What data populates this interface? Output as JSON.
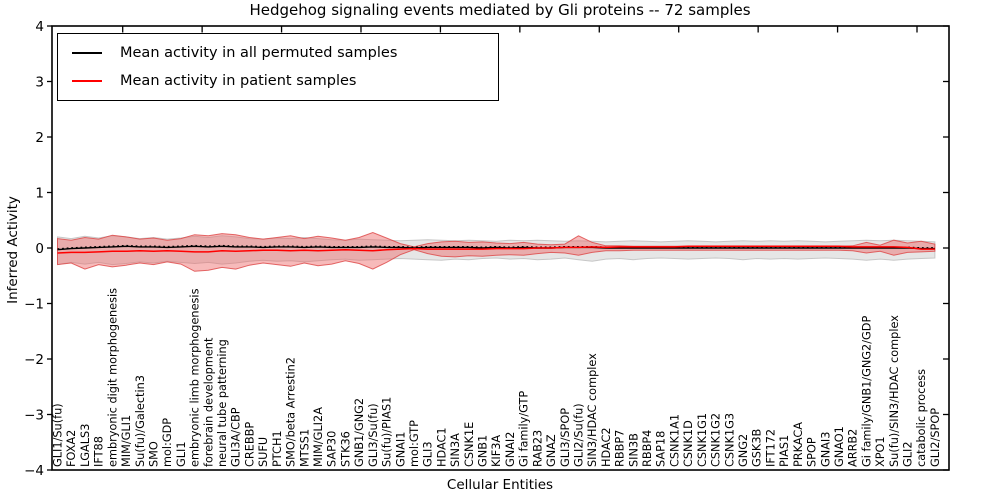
{
  "title": "Hedgehog signaling events mediated by Gli proteins -- 72 samples",
  "axes": {
    "xlabel": "Cellular Entities",
    "ylabel": "Inferred Activity",
    "ytick_values": [
      4,
      3,
      2,
      1,
      0,
      -1,
      -2,
      -3,
      -4
    ],
    "ytick_labels": [
      "4",
      "3",
      "2",
      "1",
      "0",
      "−1",
      "−2",
      "−3",
      "−4"
    ]
  },
  "legend": {
    "items": [
      {
        "label": "Mean activity in all permuted samples",
        "color": "#000000"
      },
      {
        "label": "Mean activity in patient samples",
        "color": "#ff0000"
      }
    ]
  },
  "chart_data": {
    "type": "line",
    "title": "Hedgehog signaling events mediated by Gli proteins -- 72 samples",
    "xlabel": "Cellular Entities",
    "ylabel": "Inferred Activity",
    "ylim": [
      -4,
      4
    ],
    "grid": false,
    "legend_position": "upper left",
    "sample_count": "72 samples",
    "categories": [
      "GLI1/Su(fu)",
      "FOXA2",
      "LGALS3",
      "IFT88",
      "embryonic digit morphogenesis",
      "MIM/GLI1",
      "Su(fu)/Galectin3",
      "SMO",
      "mol:GDP",
      "GLI1",
      "embryonic limb morphogenesis",
      "forebrain development",
      "neural tube patterning",
      "GLI3A/CBP",
      "CREBBP",
      "SUFU",
      "PTCH1",
      "SMO/beta Arrestin2",
      "MTSS1",
      "MIM/GLI2A",
      "SAP30",
      "STK36",
      "GNB1/GNG2",
      "GLI3/Su(fu)",
      "Su(fu)/PIAS1",
      "GNAI1",
      "mol:GTP",
      "GLI3",
      "HDAC1",
      "SIN3A",
      "CSNK1E",
      "GNB1",
      "KIF3A",
      "GNAI2",
      "Gi family/GTP",
      "RAB23",
      "GNAZ",
      "GLI3/SPOP",
      "GLI2/Su(fu)",
      "SIN3/HDAC complex",
      "HDAC2",
      "RBBP7",
      "SIN3B",
      "RBBP4",
      "SAP18",
      "CSNK1A1",
      "CSNK1D",
      "CSNK1G1",
      "CSNK1G2",
      "CSNK1G3",
      "GNG2",
      "GSK3B",
      "IFT172",
      "PIAS1",
      "PRKACA",
      "SPOP",
      "GNAI3",
      "GNAO1",
      "ARRB2",
      "Gi family/GNB1/GNG2/GDP",
      "XPO1",
      "Su(fu)/SIN3/HDAC complex",
      "GLI2",
      "catabolic process",
      "GLI2/SPOP"
    ],
    "series": [
      {
        "name": "Mean activity in all permuted samples",
        "color": "#000000",
        "values": [
          -0.03,
          -0.01,
          0,
          0.01,
          0.02,
          0.03,
          0.02,
          0.02,
          0.01,
          0.02,
          0.03,
          0.02,
          0.03,
          0.02,
          0.02,
          0.01,
          0.02,
          0.02,
          0.01,
          0.02,
          0.01,
          0.01,
          0.01,
          0.02,
          0.01,
          0.01,
          0,
          0.01,
          0.01,
          0.01,
          0.01,
          0,
          0.01,
          0,
          0.01,
          0,
          0,
          0.01,
          0.01,
          0.01,
          0,
          0,
          0,
          0,
          0,
          0,
          0,
          0,
          0,
          0,
          0,
          0,
          0,
          0,
          0,
          0,
          0,
          0,
          0,
          0,
          0,
          0,
          0,
          -0.01,
          -0.01
        ]
      },
      {
        "name": "Mean activity in patient samples",
        "color": "#ff0000",
        "values": [
          -0.09,
          -0.08,
          -0.08,
          -0.07,
          -0.06,
          -0.06,
          -0.05,
          -0.06,
          -0.05,
          -0.06,
          -0.07,
          -0.07,
          -0.05,
          -0.06,
          -0.05,
          -0.04,
          -0.04,
          -0.05,
          -0.04,
          -0.05,
          -0.04,
          -0.03,
          -0.04,
          -0.05,
          -0.03,
          -0.02,
          -0.01,
          -0.02,
          -0.02,
          -0.02,
          -0.02,
          -0.02,
          -0.01,
          -0.01,
          -0.01,
          0,
          0,
          0.01,
          0.01,
          0.02,
          0.01,
          0.02,
          0.02,
          0.02,
          0.02,
          0.02,
          0.03,
          0.03,
          0.03,
          0.03,
          0.03,
          0.03,
          0.03,
          0.03,
          0.03,
          0.03,
          0.03,
          0.03,
          0.02,
          0.02,
          0.02,
          0.02,
          0.01,
          -0.02,
          -0.02
        ]
      }
    ],
    "bands": [
      {
        "name": "permuted-range",
        "color": "#c8c8c8",
        "edge_color": "#bbbbbb",
        "opacity": 0.45,
        "upper": [
          0.2,
          0.17,
          0.21,
          0.18,
          0.22,
          0.2,
          0.17,
          0.19,
          0.16,
          0.18,
          0.21,
          0.19,
          0.22,
          0.2,
          0.17,
          0.16,
          0.18,
          0.17,
          0.19,
          0.17,
          0.15,
          0.14,
          0.16,
          0.15,
          0.14,
          0.13,
          0.14,
          0.15,
          0.14,
          0.13,
          0.14,
          0.13,
          0.12,
          0.14,
          0.13,
          0.14,
          0.13,
          0.12,
          0.13,
          0.12,
          0.11,
          0.12,
          0.13,
          0.12,
          0.11,
          0.12,
          0.13,
          0.12,
          0.11,
          0.12,
          0.13,
          0.12,
          0.13,
          0.12,
          0.13,
          0.12,
          0.11,
          0.12,
          0.13,
          0.14,
          0.13,
          0.14,
          0.13,
          0.12,
          0.11
        ],
        "lower": [
          -0.3,
          -0.26,
          -0.29,
          -0.26,
          -0.3,
          -0.28,
          -0.25,
          -0.27,
          -0.24,
          -0.26,
          -0.28,
          -0.26,
          -0.29,
          -0.27,
          -0.24,
          -0.22,
          -0.24,
          -0.23,
          -0.25,
          -0.23,
          -0.21,
          -0.2,
          -0.22,
          -0.21,
          -0.2,
          -0.19,
          -0.2,
          -0.21,
          -0.22,
          -0.2,
          -0.21,
          -0.19,
          -0.18,
          -0.2,
          -0.19,
          -0.21,
          -0.2,
          -0.18,
          -0.21,
          -0.24,
          -0.2,
          -0.19,
          -0.21,
          -0.19,
          -0.18,
          -0.19,
          -0.2,
          -0.19,
          -0.18,
          -0.19,
          -0.21,
          -0.19,
          -0.2,
          -0.19,
          -0.2,
          -0.19,
          -0.18,
          -0.19,
          -0.2,
          -0.22,
          -0.2,
          -0.22,
          -0.2,
          -0.19,
          -0.18
        ]
      },
      {
        "name": "patient-range",
        "color": "#ee6666",
        "edge_color": "#dd4444",
        "opacity": 0.45,
        "upper": [
          0.17,
          0.14,
          0.19,
          0.16,
          0.23,
          0.2,
          0.16,
          0.18,
          0.14,
          0.17,
          0.24,
          0.22,
          0.26,
          0.24,
          0.19,
          0.16,
          0.19,
          0.22,
          0.17,
          0.21,
          0.18,
          0.14,
          0.19,
          0.28,
          0.18,
          0.08,
          0.02,
          0.08,
          0.11,
          0.12,
          0.1,
          0.11,
          0.09,
          0.08,
          0.1,
          0.07,
          0.06,
          0.07,
          0.22,
          0.1,
          0.04,
          0.04,
          0.03,
          0.03,
          0.03,
          0.03,
          0.03,
          0.03,
          0.03,
          0.03,
          0.03,
          0.03,
          0.03,
          0.03,
          0.03,
          0.03,
          0.03,
          0.03,
          0.04,
          0.1,
          0.05,
          0.14,
          0.09,
          0.12,
          0.07
        ],
        "lower": [
          -0.3,
          -0.27,
          -0.38,
          -0.3,
          -0.34,
          -0.31,
          -0.27,
          -0.3,
          -0.25,
          -0.29,
          -0.42,
          -0.4,
          -0.35,
          -0.38,
          -0.31,
          -0.27,
          -0.3,
          -0.33,
          -0.27,
          -0.32,
          -0.29,
          -0.23,
          -0.28,
          -0.38,
          -0.26,
          -0.12,
          -0.03,
          -0.1,
          -0.15,
          -0.16,
          -0.14,
          -0.15,
          -0.13,
          -0.12,
          -0.13,
          -0.1,
          -0.08,
          -0.09,
          -0.13,
          -0.08,
          -0.05,
          -0.05,
          -0.04,
          -0.04,
          -0.04,
          -0.04,
          -0.04,
          -0.04,
          -0.04,
          -0.04,
          -0.04,
          -0.04,
          -0.04,
          -0.04,
          -0.04,
          -0.04,
          -0.04,
          -0.04,
          -0.05,
          -0.09,
          -0.06,
          -0.13,
          -0.08,
          -0.07,
          -0.06
        ]
      }
    ]
  }
}
